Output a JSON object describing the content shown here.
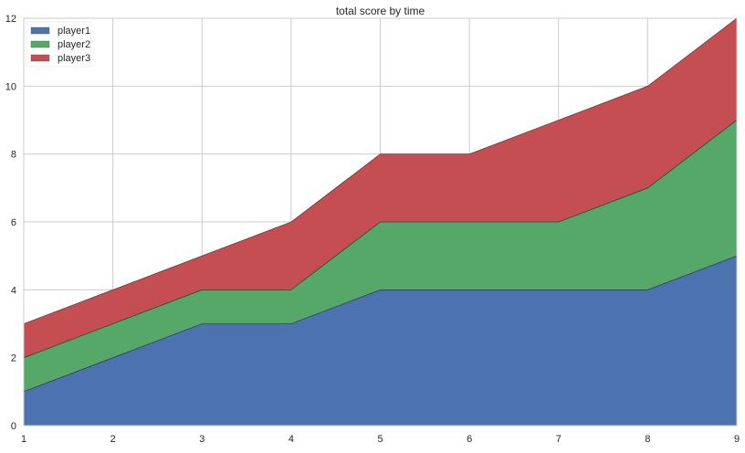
{
  "chart_data": {
    "type": "area",
    "stacked": true,
    "title": "total score by time",
    "xlabel": "",
    "ylabel": "",
    "x": [
      1,
      2,
      3,
      4,
      5,
      6,
      7,
      8,
      9
    ],
    "xlim": [
      1,
      9
    ],
    "ylim": [
      0,
      12
    ],
    "yticks": [
      0,
      2,
      4,
      6,
      8,
      10,
      12
    ],
    "xticks": [
      1,
      2,
      3,
      4,
      5,
      6,
      7,
      8,
      9
    ],
    "grid": true,
    "legend_position": "upper left",
    "series": [
      {
        "name": "player1",
        "color": "#4c72b0",
        "values": [
          1,
          2,
          3,
          3,
          4,
          4,
          4,
          4,
          5
        ]
      },
      {
        "name": "player2",
        "color": "#55a868",
        "values": [
          1,
          1,
          1,
          1,
          2,
          2,
          2,
          3,
          4
        ]
      },
      {
        "name": "player3",
        "color": "#c44e52",
        "values": [
          1,
          1,
          1,
          2,
          2,
          2,
          3,
          3,
          3
        ]
      }
    ]
  }
}
